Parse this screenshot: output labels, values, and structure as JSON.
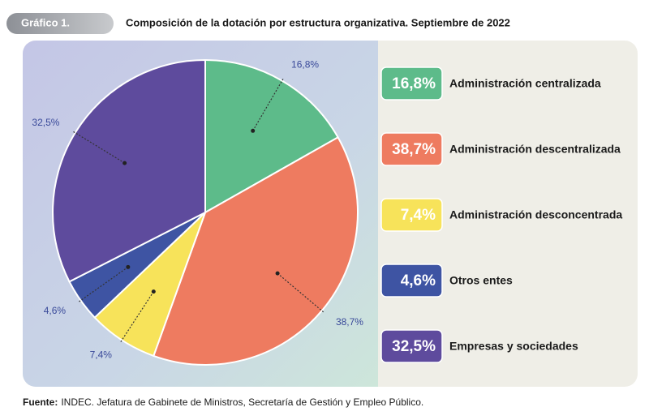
{
  "header": {
    "tag": "Gráfico 1."
  },
  "chart_data": {
    "type": "pie",
    "title": "Composición de la dotación por estructura organizativa. Septiembre de 2022",
    "categories": [
      "Administración centralizada",
      "Administración descentralizada",
      "Administración desconcentrada",
      "Otros entes",
      "Empresas y sociedades"
    ],
    "values": [
      16.8,
      38.7,
      7.4,
      4.6,
      32.5
    ],
    "value_labels": [
      "16,8%",
      "38,7%",
      "7,4%",
      "4,6%",
      "32,5%"
    ],
    "colors": [
      "#5dbb8a",
      "#ee7b60",
      "#f7e35a",
      "#3e54a3",
      "#5e4b9d"
    ]
  },
  "footer": {
    "label": "Fuente:",
    "text": "INDEC. Jefatura de Gabinete de Ministros, Secretaría de Gestión y Empleo Público."
  }
}
